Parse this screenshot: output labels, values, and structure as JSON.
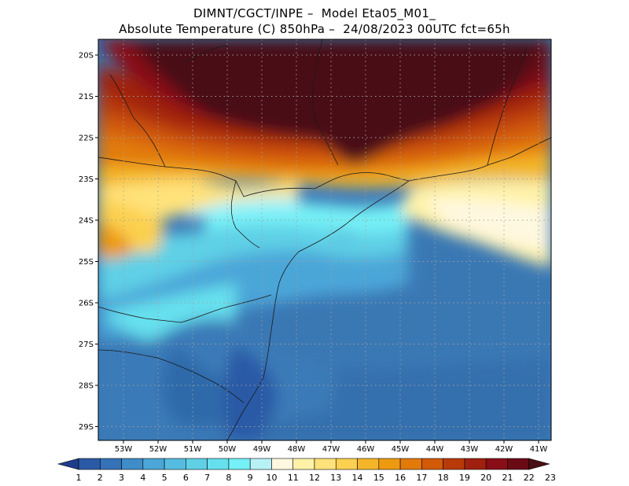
{
  "header": {
    "line1": "DIMNT/CGCT/INPE –  Model Eta05_M01_",
    "line2": "Absolute Temperature (C) 850hPa –  24/08/2023 00UTC fct=65h"
  },
  "map": {
    "lat_labels": [
      "20S",
      "21S",
      "22S",
      "23S",
      "24S",
      "25S",
      "26S",
      "27S",
      "28S",
      "29S"
    ],
    "lon_labels": [
      "53W",
      "52W",
      "51W",
      "50W",
      "49W",
      "48W",
      "47W",
      "46W",
      "45W",
      "44W",
      "43W",
      "42W",
      "41W"
    ],
    "grid": true,
    "units": "C"
  },
  "colorbar": {
    "labels": [
      "1",
      "2",
      "3",
      "4",
      "5",
      "6",
      "7",
      "8",
      "9",
      "10",
      "11",
      "12",
      "13",
      "14",
      "15",
      "16",
      "17",
      "18",
      "19",
      "20",
      "21",
      "22",
      "23"
    ],
    "colors": [
      "#1f3c8c",
      "#2a5aa6",
      "#3572b8",
      "#3f8cc8",
      "#4ca6d8",
      "#56bde0",
      "#5fd0e6",
      "#66e0ee",
      "#74f0f6",
      "#b8f2f7",
      "#fff8e0",
      "#fff2a8",
      "#ffe27a",
      "#fcd050",
      "#f4b628",
      "#ee9a10",
      "#e27a0a",
      "#d25a08",
      "#b83a08",
      "#a02010",
      "#8a0e18",
      "#6a0a14",
      "#4a0f14"
    ]
  }
}
